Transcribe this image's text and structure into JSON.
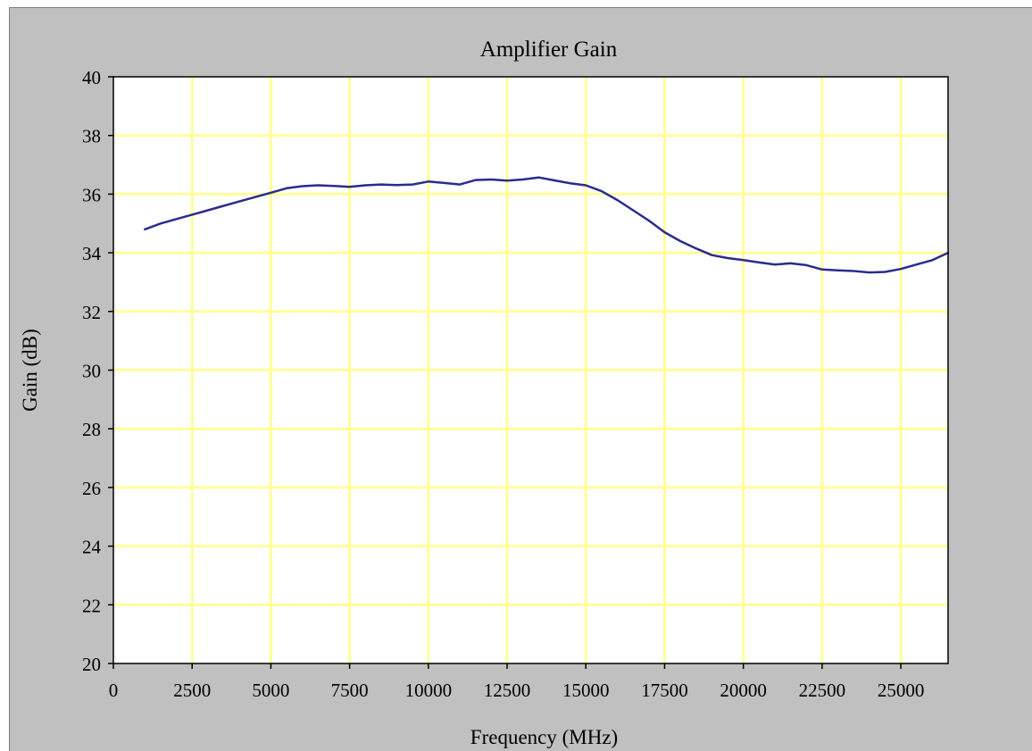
{
  "colors": {
    "background": "#c0c0c0",
    "plot_area": "#ffffff",
    "gridline": "#ffff99",
    "series_line": "#2b2b8f"
  },
  "chart_data": {
    "type": "line",
    "title": "Amplifier Gain",
    "xlabel": "Frequency (MHz)",
    "ylabel": "Gain (dB)",
    "xlim": [
      0,
      26500
    ],
    "ylim": [
      20,
      40
    ],
    "x_ticks": [
      0,
      2500,
      5000,
      7500,
      10000,
      12500,
      15000,
      17500,
      20000,
      22500,
      25000
    ],
    "x_tick_labels": [
      "0",
      "2500",
      "5000",
      "7500",
      "10000",
      "12500",
      "15000",
      "17500",
      "20000",
      "22500",
      "25000"
    ],
    "y_ticks": [
      20,
      22,
      24,
      26,
      28,
      30,
      32,
      34,
      36,
      38,
      40
    ],
    "y_tick_labels": [
      "20",
      "22",
      "24",
      "26",
      "28",
      "30",
      "32",
      "34",
      "36",
      "38",
      "40"
    ],
    "grid": true,
    "legend": "none",
    "series": [
      {
        "x": [
          1000,
          1500,
          2000,
          2500,
          3000,
          3500,
          4000,
          4500,
          5000,
          5500,
          6000,
          6500,
          7000,
          7500,
          8000,
          8500,
          9000,
          9500,
          10000,
          10500,
          11000,
          11500,
          12000,
          12500,
          13000,
          13500,
          14000,
          14500,
          15000,
          15500,
          16000,
          16500,
          17000,
          17500,
          18000,
          18500,
          19000,
          19500,
          20000,
          20500,
          21000,
          21500,
          22000,
          22500,
          23000,
          23500,
          24000,
          24500,
          25000,
          25500,
          26000,
          26500
        ],
        "values": [
          34.8,
          35.0,
          35.15,
          35.3,
          35.45,
          35.6,
          35.75,
          35.9,
          36.05,
          36.2,
          36.27,
          36.3,
          36.28,
          36.25,
          36.3,
          36.33,
          36.31,
          36.33,
          36.43,
          36.38,
          36.33,
          36.48,
          36.5,
          36.46,
          36.5,
          36.57,
          36.47,
          36.37,
          36.3,
          36.1,
          35.8,
          35.45,
          35.1,
          34.7,
          34.4,
          34.15,
          33.92,
          33.82,
          33.75,
          33.67,
          33.6,
          33.64,
          33.58,
          33.43,
          33.4,
          33.38,
          33.33,
          33.35,
          33.45,
          33.6,
          33.75,
          34.0
        ]
      }
    ]
  }
}
